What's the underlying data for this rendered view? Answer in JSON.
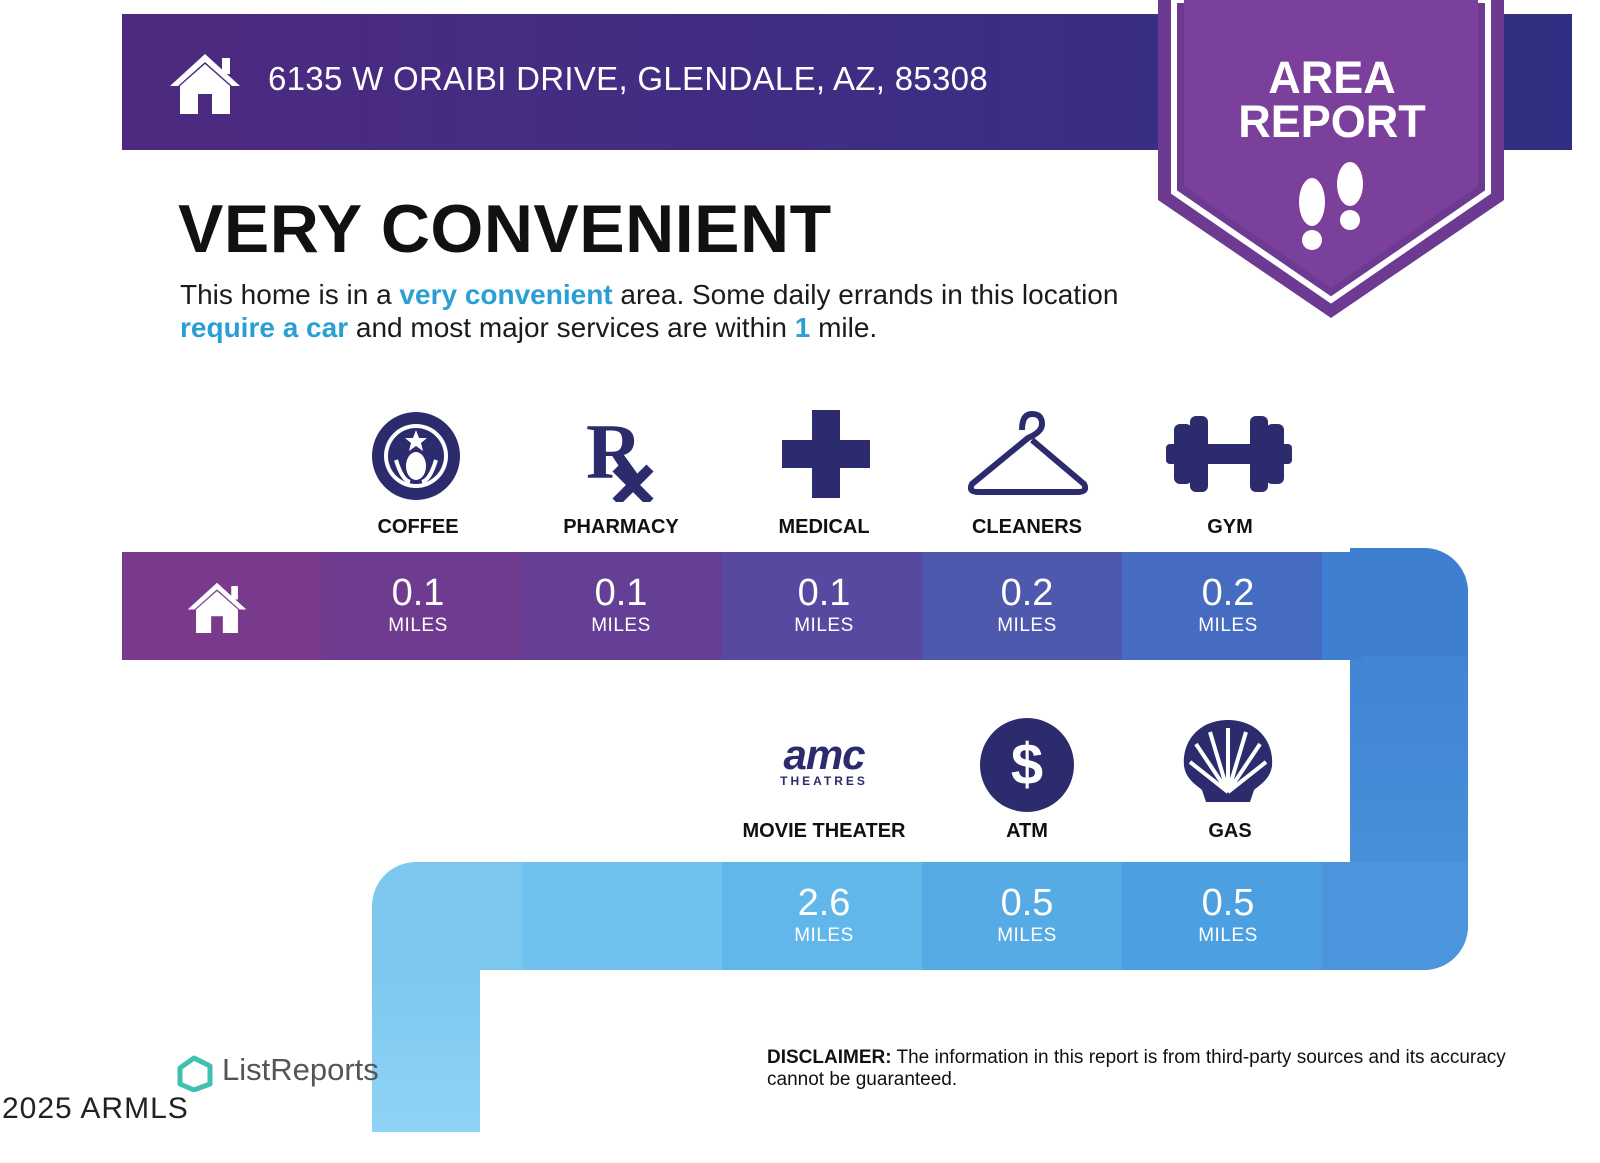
{
  "header": {
    "address": "6135 W ORAIBI DRIVE, GLENDALE, AZ, 85308",
    "badge_line1": "AREA",
    "badge_line2": "REPORT"
  },
  "summary": {
    "headline": "VERY CONVENIENT",
    "desc_1": "This home is in a ",
    "desc_hl1": "very convenient",
    "desc_2": " area. Some daily errands in this location ",
    "desc_hl2": "require a car",
    "desc_3": " and most major services are within ",
    "desc_hl3": "1",
    "desc_4": " mile."
  },
  "amenities_row1": [
    {
      "label": "COFFEE",
      "value": "0.1",
      "unit": "MILES",
      "icon": "starbucks-logo"
    },
    {
      "label": "PHARMACY",
      "value": "0.1",
      "unit": "MILES",
      "icon": "rx-icon"
    },
    {
      "label": "MEDICAL",
      "value": "0.1",
      "unit": "MILES",
      "icon": "medical-cross-icon"
    },
    {
      "label": "CLEANERS",
      "value": "0.2",
      "unit": "MILES",
      "icon": "hanger-icon"
    },
    {
      "label": "GYM",
      "value": "0.2",
      "unit": "MILES",
      "icon": "dumbbell-icon"
    }
  ],
  "amenities_row2": [
    {
      "label": "MOVIE THEATER",
      "value": "2.6",
      "unit": "MILES",
      "icon": "amc-theatres-logo",
      "logo_main": "amc",
      "logo_sub": "THEATRES"
    },
    {
      "label": "ATM",
      "value": "0.5",
      "unit": "MILES",
      "icon": "dollar-icon",
      "glyph": "$"
    },
    {
      "label": "GAS",
      "value": "0.5",
      "unit": "MILES",
      "icon": "shell-logo"
    }
  ],
  "footer": {
    "brand": "ListReports",
    "disclaimer_bold": "DISCLAIMER:",
    "disclaimer_text": " The information in this report is from third-party sources and its accuracy cannot be guaranteed.",
    "watermark": "2025 ARMLS"
  },
  "colors": {
    "header": "#3e2d84",
    "accent_text": "#2a9fd6",
    "row1_start": "#7a3a8c",
    "row1_end": "#3d7fd0",
    "row2": "#5bb6e8",
    "icon_navy": "#2b2b6e"
  }
}
